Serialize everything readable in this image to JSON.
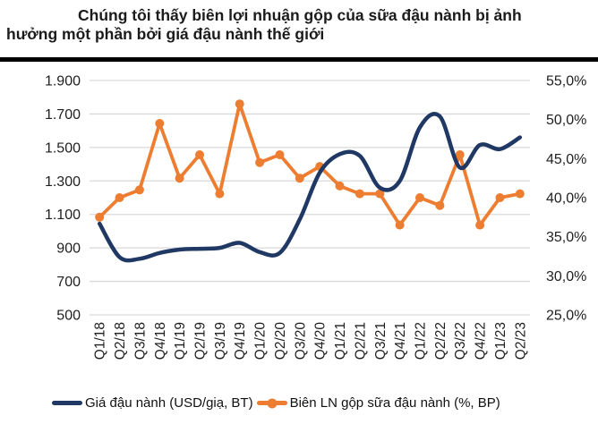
{
  "title": {
    "line1": "Chúng tôi thấy biên lợi nhuận gộp của sữa đậu nành bị ảnh",
    "line2": "hưởng một phần bởi giá đậu nành thế giới"
  },
  "colors": {
    "price_line": "#1F3864",
    "margin_line": "#ED7D31",
    "gridline": "#D9D9D9",
    "divider": "#000000",
    "axis_text": "#1F1F1F"
  },
  "chart_data": {
    "type": "line",
    "categories": [
      "Q1/18",
      "Q2/18",
      "Q3/18",
      "Q4/18",
      "Q1/19",
      "Q2/19",
      "Q3/19",
      "Q4/19",
      "Q1/20",
      "Q2/20",
      "Q3/20",
      "Q4/20",
      "Q1/21",
      "Q2/21",
      "Q3/21",
      "Q4/21",
      "Q1/22",
      "Q2/22",
      "Q3/22",
      "Q4/22",
      "Q1/23",
      "Q2/23"
    ],
    "series": [
      {
        "name": "Giá đậu nành (USD/giạ, BT)",
        "axis": "left",
        "color": "#1F3864",
        "style": "smooth",
        "values": [
          1045,
          845,
          835,
          870,
          890,
          895,
          900,
          930,
          875,
          870,
          1070,
          1350,
          1460,
          1450,
          1260,
          1300,
          1620,
          1685,
          1380,
          1515,
          1490,
          1560
        ]
      },
      {
        "name": "Biên LN gộp sữa đậu nành (%, BP)",
        "axis": "right",
        "color": "#ED7D31",
        "style": "straight-with-markers",
        "values": [
          37.5,
          40,
          41,
          49.5,
          42.5,
          45.5,
          40.5,
          52,
          44.5,
          45.5,
          42.5,
          44,
          41.5,
          40.5,
          40.5,
          36.5,
          40,
          39,
          45.5,
          36.5,
          40,
          40.5
        ]
      }
    ],
    "left_axis": {
      "min": 500,
      "max": 1900,
      "tick_labels": [
        "1.900",
        "1.700",
        "1.500",
        "1.300",
        "1.100",
        "900",
        "700",
        "500"
      ]
    },
    "right_axis": {
      "min": 25,
      "max": 55,
      "tick_labels": [
        "55,0%",
        "50,0%",
        "45,0%",
        "40,0%",
        "35,0%",
        "30,0%",
        "25,0%"
      ]
    },
    "grid": true,
    "legend_position": "bottom",
    "x_tick_rotation": -90
  }
}
